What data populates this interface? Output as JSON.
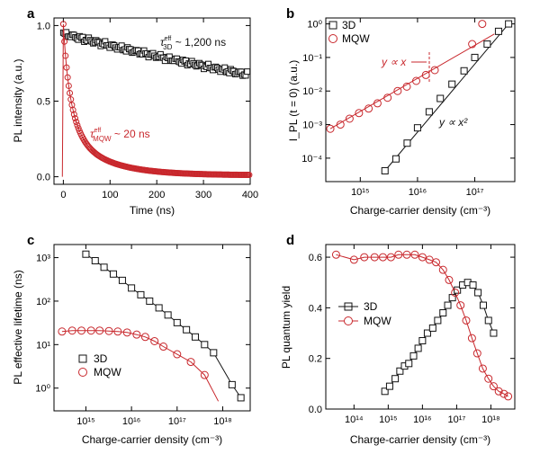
{
  "figure": {
    "title": ""
  },
  "chart_data": [
    {
      "panel": "a",
      "type": "scatter",
      "xlabel": "Time (ns)",
      "ylabel": "PL intensity (a.u.)",
      "xlim": [
        -20,
        400
      ],
      "ylim": [
        -0.05,
        1.05
      ],
      "xticks": [
        0,
        100,
        200,
        300,
        400
      ],
      "yticks": [
        0.0,
        0.5,
        1.0
      ],
      "ytick_labels": [
        "0.0",
        "0.5",
        "1.0"
      ],
      "annotations": [
        {
          "id": "tau3d",
          "text": "τ",
          "sub": "3D",
          "sup": "eff",
          "rest": " ~ 1,200 ns",
          "color": "#111111"
        },
        {
          "id": "taumqw",
          "text": "τ",
          "sub": "MQW",
          "sup": "eff",
          "rest": " ~ 20 ns",
          "color": "#c8272c"
        }
      ],
      "series": [
        {
          "name": "3D",
          "marker": "square",
          "color": "#111111",
          "tau": 1200,
          "amplitude": 0.96
        },
        {
          "name": "MQW",
          "marker": "circle",
          "color": "#c8272c",
          "tau": 20,
          "amplitude": 1.0
        }
      ]
    },
    {
      "panel": "b",
      "type": "scatter",
      "xscale": "log",
      "yscale": "log",
      "xlabel": "Charge-carrier density (cm⁻³)",
      "ylabel": "I_PL (t = 0) (a.u.)",
      "xlim": [
        250000000000000.0,
        5e+17
      ],
      "ylim": [
        2e-05,
        1.5
      ],
      "xtick_values": [
        1000000000000000.0,
        1e+16,
        1e+17
      ],
      "xtick_labels": [
        "10¹⁵",
        "10¹⁶",
        "10¹⁷"
      ],
      "ytick_values": [
        0.0001,
        0.001,
        0.01,
        0.1,
        1
      ],
      "ytick_labels": [
        "10⁻⁴",
        "10⁻³",
        "10⁻²",
        "10⁻¹",
        "10⁰"
      ],
      "legend": {
        "position": "top-left",
        "entries": [
          "3D",
          "MQW"
        ]
      },
      "annotations": [
        {
          "id": "linear",
          "text": "y ∝ x",
          "color": "#c8272c"
        },
        {
          "id": "quadratic",
          "text": "y ∝ x²",
          "color": "#111111"
        }
      ],
      "series": [
        {
          "name": "3D",
          "marker": "square",
          "color": "#111111",
          "x": [
            2700000000000000.0,
            4200000000000000.0,
            6600000000000000.0,
            1e+16,
            1.6e+16,
            2.5e+16,
            4e+16,
            6.5e+16,
            1e+17,
            1.65e+17,
            2.6e+17,
            3.9e+17
          ],
          "y": [
            4.2e-05,
            9.5e-05,
            0.00028,
            0.0008,
            0.0024,
            0.006,
            0.016,
            0.04,
            0.1,
            0.25,
            0.6,
            1.0
          ]
        },
        {
          "name": "MQW",
          "marker": "circle",
          "color": "#c8272c",
          "x": [
            300000000000000.0,
            450000000000000.0,
            650000000000000.0,
            950000000000000.0,
            1400000000000000.0,
            2000000000000000.0,
            3000000000000000.0,
            4500000000000000.0,
            6500000000000000.0,
            9500000000000000.0,
            1.4e+16,
            2e+16,
            9e+16,
            1.35e+17
          ],
          "y": [
            0.00075,
            0.001,
            0.0015,
            0.0022,
            0.003,
            0.0043,
            0.0063,
            0.01,
            0.0135,
            0.02,
            0.03,
            0.042,
            0.25,
            1.0
          ]
        }
      ]
    },
    {
      "panel": "c",
      "type": "scatter",
      "xscale": "log",
      "yscale": "log",
      "xlabel": "Charge-carrier density (cm⁻³)",
      "ylabel": "PL effective lifetime (ns)",
      "xlim": [
        200000000000000.0,
        4e+18
      ],
      "ylim": [
        0.3,
        2000
      ],
      "xtick_values": [
        1000000000000000.0,
        1e+16,
        1e+17,
        1e+18
      ],
      "xtick_labels": [
        "10¹⁵",
        "10¹⁶",
        "10¹⁷",
        "10¹⁸"
      ],
      "ytick_values": [
        1,
        10,
        100,
        1000
      ],
      "ytick_labels": [
        "10⁰",
        "10¹",
        "10²",
        "10³"
      ],
      "legend": {
        "position": "bottom-left",
        "entries": [
          "3D",
          "MQW"
        ]
      },
      "series": [
        {
          "name": "3D",
          "marker": "square",
          "color": "#111111",
          "x": [
            1000000000000000.0,
            1600000000000000.0,
            2500000000000000.0,
            4000000000000000.0,
            6300000000000000.0,
            1e+16,
            1.6e+16,
            2.5e+16,
            4e+16,
            6.3e+16,
            1e+17,
            1.6e+17,
            2.5e+17,
            4e+17,
            6.3e+17,
            1.6e+18,
            2.5e+18
          ],
          "y": [
            1200,
            850,
            600,
            420,
            300,
            200,
            140,
            100,
            70,
            48,
            32,
            22,
            15,
            10,
            6.5,
            1.2,
            0.6
          ]
        },
        {
          "name": "MQW",
          "marker": "circle",
          "color": "#c8272c",
          "x": [
            300000000000000.0,
            500000000000000.0,
            800000000000000.0,
            1300000000000000.0,
            2000000000000000.0,
            3200000000000000.0,
            5000000000000000.0,
            8000000000000000.0,
            1.3e+16,
            2e+16,
            3.2e+16,
            5e+16,
            1e+17,
            2e+17,
            4e+17,
            8e+17
          ],
          "y": [
            20,
            21,
            21,
            21,
            21,
            20.5,
            20,
            19,
            17,
            15,
            12,
            9,
            6,
            4,
            2,
            0.5
          ]
        }
      ]
    },
    {
      "panel": "d",
      "type": "scatter",
      "xscale": "log",
      "xlabel": "Charge-carrier density (cm⁻³)",
      "ylabel": "PL quantum yield",
      "xlim": [
        15000000000000.0,
        5e+18
      ],
      "ylim": [
        0,
        0.65
      ],
      "xtick_values": [
        100000000000000.0,
        1000000000000000.0,
        1e+16,
        1e+17,
        1e+18
      ],
      "xtick_labels": [
        "10¹⁴",
        "10¹⁵",
        "10¹⁶",
        "10¹⁷",
        "10¹⁸"
      ],
      "ytick_values": [
        0.0,
        0.2,
        0.4,
        0.6
      ],
      "ytick_labels": [
        "0.0",
        "0.2",
        "0.4",
        "0.6"
      ],
      "legend": {
        "position": "middle-left",
        "entries": [
          "3D",
          "MQW"
        ]
      },
      "series": [
        {
          "name": "3D",
          "marker": "square",
          "color": "#111111",
          "x": [
            800000000000000.0,
            1100000000000000.0,
            1600000000000000.0,
            2200000000000000.0,
            3000000000000000.0,
            4000000000000000.0,
            5500000000000000.0,
            7500000000000000.0,
            1e+16,
            1.4e+16,
            2e+16,
            2.8e+16,
            4e+16,
            5.5e+16,
            7.5e+16,
            1.05e+17,
            1.5e+17,
            2.1e+17,
            3e+17,
            4.2e+17,
            6e+17,
            8.5e+17,
            1.2e+18
          ],
          "y": [
            0.07,
            0.09,
            0.12,
            0.15,
            0.17,
            0.18,
            0.21,
            0.24,
            0.27,
            0.3,
            0.32,
            0.35,
            0.38,
            0.41,
            0.44,
            0.47,
            0.49,
            0.5,
            0.49,
            0.46,
            0.41,
            0.35,
            0.3
          ]
        },
        {
          "name": "MQW",
          "marker": "circle",
          "color": "#c8272c",
          "x": [
            30000000000000.0,
            100000000000000.0,
            200000000000000.0,
            400000000000000.0,
            700000000000000.0,
            1200000000000000.0,
            2000000000000000.0,
            3500000000000000.0,
            6000000000000000.0,
            1e+16,
            1.6e+16,
            2.5e+16,
            4e+16,
            6e+16,
            9e+16,
            1.3e+17,
            1.9e+17,
            2.8e+17,
            4e+17,
            5.8e+17,
            8.5e+17,
            1.2e+18,
            1.7e+18,
            2.4e+18,
            3.2e+18
          ],
          "y": [
            0.61,
            0.59,
            0.6,
            0.6,
            0.6,
            0.6,
            0.61,
            0.61,
            0.61,
            0.6,
            0.59,
            0.58,
            0.55,
            0.51,
            0.46,
            0.41,
            0.35,
            0.28,
            0.22,
            0.16,
            0.12,
            0.09,
            0.07,
            0.06,
            0.05
          ]
        }
      ]
    }
  ]
}
